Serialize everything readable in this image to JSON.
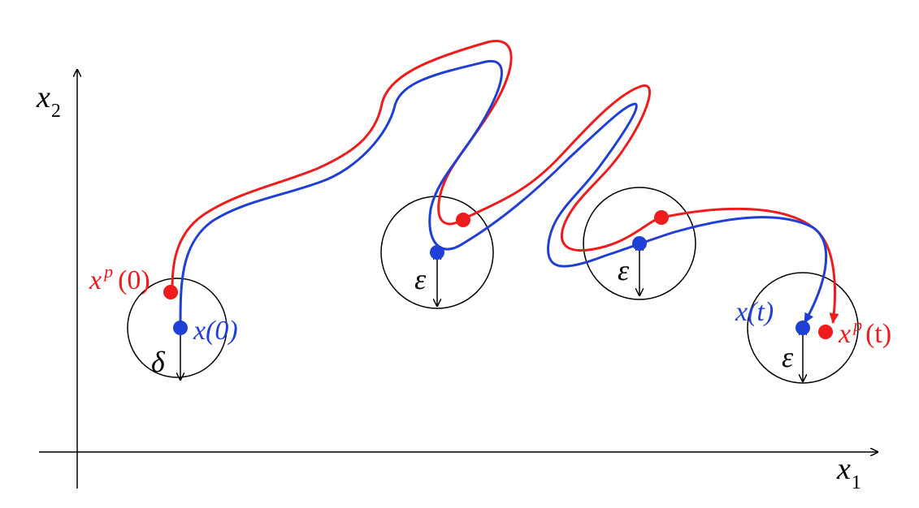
{
  "colors": {
    "nominal": "#1f3fd6",
    "perturbed": "#ee1c1c",
    "axis": "#000000",
    "ball": "#000000"
  },
  "axes": {
    "x_label": "x",
    "x_sub": "1",
    "y_label": "x",
    "y_sub": "2"
  },
  "labels": {
    "xp0_base": "x",
    "xp0_sup": "p",
    "xp0_arg": "(0)",
    "x0_text": "x(0)",
    "xt_text": "x(t)",
    "xpt_base": "x",
    "xpt_sup": "p",
    "xpt_arg": "(t)",
    "delta": "δ",
    "epsilon": "ε"
  }
}
